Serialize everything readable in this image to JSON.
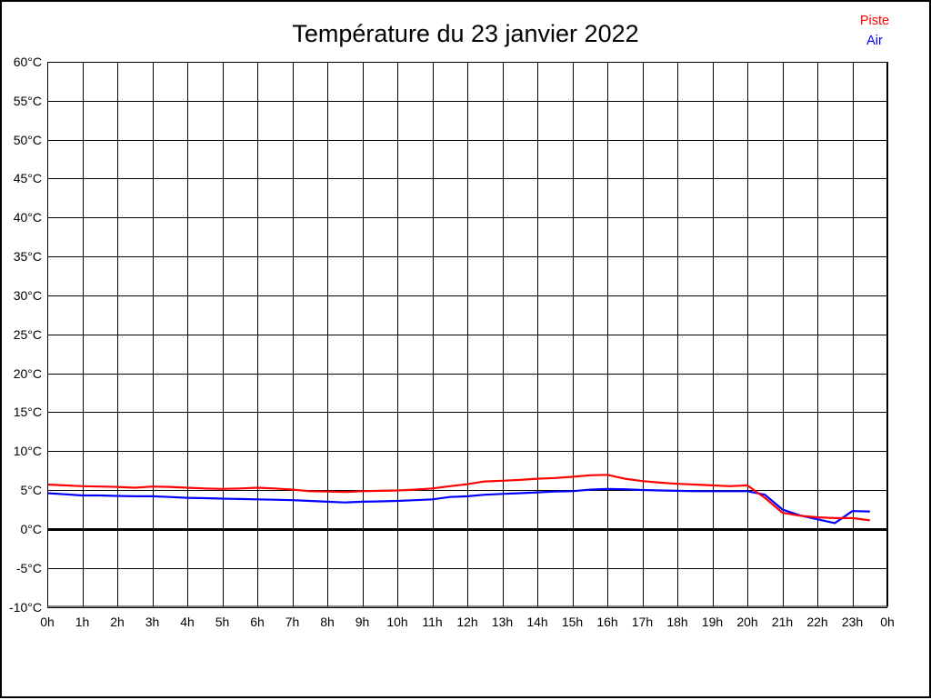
{
  "title": "Température du 23 janvier 2022",
  "legend": {
    "items": [
      {
        "label": "Piste",
        "color": "#ff0000"
      },
      {
        "label": "Air",
        "color": "#0000ff"
      }
    ]
  },
  "chart_data": {
    "type": "line",
    "title": "Température du 23 janvier 2022",
    "xlabel": "",
    "ylabel": "",
    "xlim": [
      0,
      24
    ],
    "ylim": [
      -10,
      60
    ],
    "x_tick_step": 1,
    "y_tick_step": 5,
    "grid": true,
    "emphasized_y_value": 0,
    "legend_position": "top-right",
    "x_tick_labels": [
      "0h",
      "1h",
      "2h",
      "3h",
      "4h",
      "5h",
      "6h",
      "7h",
      "8h",
      "9h",
      "10h",
      "11h",
      "12h",
      "13h",
      "14h",
      "15h",
      "16h",
      "17h",
      "18h",
      "19h",
      "20h",
      "21h",
      "22h",
      "23h",
      "0h"
    ],
    "y_tick_labels": [
      "60°C",
      "55°C",
      "50°C",
      "45°C",
      "40°C",
      "35°C",
      "30°C",
      "25°C",
      "20°C",
      "15°C",
      "10°C",
      "5°C",
      "0°C",
      "-5°C",
      "-10°C"
    ],
    "x": [
      0,
      0.5,
      1,
      1.5,
      2,
      2.5,
      3,
      3.5,
      4,
      4.5,
      5,
      5.5,
      6,
      6.5,
      7,
      7.5,
      8,
      8.5,
      9,
      9.5,
      10,
      10.5,
      11,
      11.5,
      12,
      12.5,
      13,
      13.5,
      14,
      14.5,
      15,
      15.5,
      16,
      16.5,
      17,
      17.5,
      18,
      18.5,
      19,
      19.5,
      20,
      20.5,
      21,
      21.5,
      22,
      22.5,
      23,
      23.5
    ],
    "series": [
      {
        "name": "Piste",
        "color": "#ff0000",
        "values": [
          5.7,
          5.6,
          5.5,
          5.45,
          5.4,
          5.3,
          5.45,
          5.4,
          5.3,
          5.2,
          5.15,
          5.2,
          5.3,
          5.2,
          5.05,
          4.85,
          4.8,
          4.75,
          4.85,
          4.9,
          4.95,
          5.05,
          5.2,
          5.5,
          5.75,
          6.1,
          6.2,
          6.3,
          6.45,
          6.55,
          6.7,
          6.9,
          6.95,
          6.45,
          6.15,
          5.95,
          5.8,
          5.7,
          5.6,
          5.5,
          5.6,
          4.0,
          2.1,
          1.7,
          1.5,
          1.4,
          1.4,
          1.1
        ]
      },
      {
        "name": "Air",
        "color": "#0000ff",
        "values": [
          4.6,
          4.45,
          4.3,
          4.3,
          4.25,
          4.2,
          4.2,
          4.1,
          4.0,
          3.95,
          3.9,
          3.85,
          3.8,
          3.75,
          3.7,
          3.6,
          3.5,
          3.4,
          3.5,
          3.55,
          3.6,
          3.7,
          3.8,
          4.1,
          4.2,
          4.4,
          4.5,
          4.6,
          4.7,
          4.8,
          4.85,
          5.05,
          5.15,
          5.1,
          5.0,
          4.95,
          4.9,
          4.85,
          4.85,
          4.85,
          4.85,
          4.4,
          2.5,
          1.75,
          1.25,
          0.75,
          2.3,
          2.25
        ]
      }
    ]
  }
}
